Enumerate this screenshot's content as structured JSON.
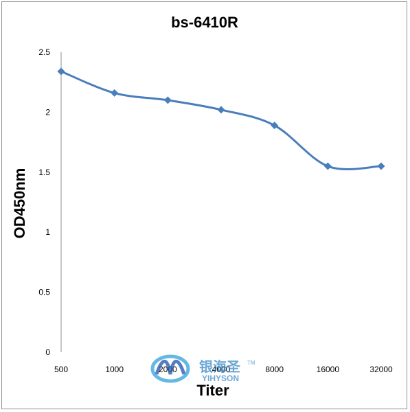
{
  "chart_data": {
    "type": "line",
    "title": "bs-6410R",
    "xlabel": "Titer",
    "ylabel": "OD450nm",
    "categories": [
      "500",
      "1000",
      "2000",
      "4000",
      "8000",
      "16000",
      "32000"
    ],
    "series": [
      {
        "values": [
          2.34,
          2.16,
          2.1,
          2.02,
          1.89,
          1.55,
          1.55
        ]
      }
    ],
    "ylim": [
      0,
      2.5
    ],
    "yticks": [
      "0",
      "0.5",
      "1",
      "1.5",
      "2",
      "2.5"
    ],
    "grid": false,
    "legend": "none",
    "line_color": "#4a7ebb"
  },
  "watermark": {
    "cn": "银海圣",
    "en": "YIHYSON",
    "tm": "TM"
  }
}
